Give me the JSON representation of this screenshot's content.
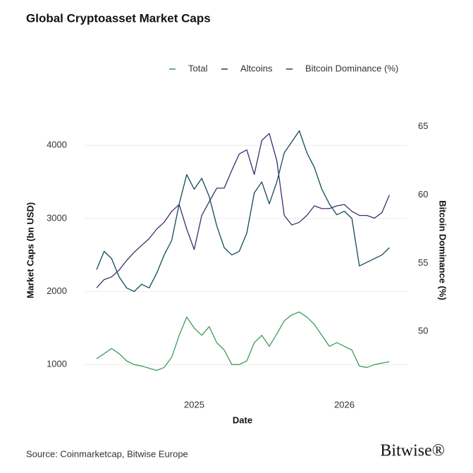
{
  "chart_data": {
    "type": "line",
    "title": "Global Cryptoasset Market Caps",
    "x_label": "Date",
    "y_label": "Market Caps (bn USD)",
    "y2_label": "Bitcoin Dominance (%)",
    "source": "Source: Coinmarketcap, Bitwise Europe",
    "logo": "Bitwise®",
    "x": [
      2024.35,
      2024.4,
      2024.45,
      2024.5,
      2024.55,
      2024.6,
      2024.65,
      2024.7,
      2024.75,
      2024.8,
      2024.85,
      2024.9,
      2024.95,
      2025.0,
      2025.05,
      2025.1,
      2025.15,
      2025.2,
      2025.25,
      2025.3,
      2025.35,
      2025.4,
      2025.45,
      2025.5,
      2025.55,
      2025.6,
      2025.65,
      2025.7,
      2025.75,
      2025.8,
      2025.85,
      2025.9,
      2025.95,
      2026.0,
      2026.05,
      2026.1,
      2026.15,
      2026.2,
      2026.25,
      2026.3
    ],
    "xlim": [
      2024.27,
      2026.42
    ],
    "xticks": [
      2025,
      2026
    ],
    "ylim": [
      780,
      4350
    ],
    "yticks": [
      1000,
      2000,
      3000,
      4000
    ],
    "y2lim": [
      46.4,
      65.5
    ],
    "y2ticks": [
      50,
      55,
      60,
      65
    ],
    "grid": true,
    "legend": "top",
    "series": [
      {
        "name": "Total",
        "color": "#3f9b5c",
        "values": [
          1080,
          1150,
          1220,
          1150,
          1050,
          1000,
          980,
          950,
          920,
          960,
          1100,
          1400,
          1650,
          1500,
          1400,
          1520,
          1300,
          1200,
          1000,
          1000,
          1050,
          1300,
          1400,
          1250,
          1420,
          1600,
          1680,
          1720,
          1650,
          1550,
          1400,
          1250,
          1300,
          1250,
          1200,
          980,
          960,
          1000,
          1020,
          1040
        ]
      },
      {
        "name": "Altcoins",
        "color": "#0f4b58",
        "values": [
          2300,
          2550,
          2450,
          2200,
          2050,
          2000,
          2100,
          2050,
          2250,
          2500,
          2700,
          3200,
          3600,
          3400,
          3550,
          3300,
          2900,
          2600,
          2500,
          2550,
          2800,
          3350,
          3500,
          3200,
          3500,
          3900,
          4050,
          4200,
          3900,
          3700,
          3400,
          3200,
          3050,
          3100,
          3000,
          2350,
          2400,
          2450,
          2500,
          2600
        ]
      },
      {
        "name": "Bitcoin Dominance (%)",
        "color": "#452a6b",
        "axis": "y2",
        "values": [
          53.2,
          53.8,
          54.0,
          54.5,
          55.2,
          55.8,
          56.3,
          56.8,
          57.5,
          58.0,
          58.8,
          59.3,
          57.5,
          56.0,
          58.5,
          59.5,
          60.5,
          60.5,
          61.8,
          63.0,
          63.3,
          61.5,
          64.0,
          64.5,
          62.5,
          58.5,
          57.8,
          58.0,
          58.5,
          59.2,
          59.0,
          59.0,
          59.2,
          59.3,
          58.8,
          58.5,
          58.5,
          58.3,
          58.7,
          60.0
        ]
      }
    ]
  }
}
